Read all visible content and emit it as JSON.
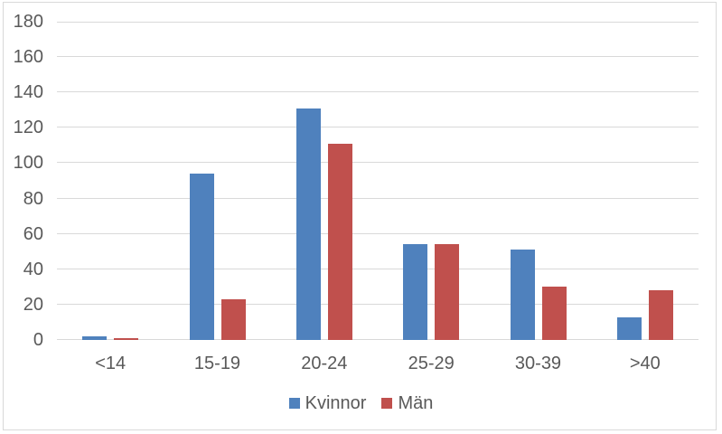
{
  "chart_data": {
    "type": "bar",
    "categories": [
      "<14",
      "15-19",
      "20-24",
      "25-29",
      "30-39",
      ">40"
    ],
    "series": [
      {
        "name": "Kvinnor",
        "color": "#4F81BD",
        "values": [
          2,
          94,
          131,
          54,
          51,
          13
        ]
      },
      {
        "name": "Män",
        "color": "#C0504D",
        "values": [
          1,
          23,
          111,
          54,
          30,
          28
        ]
      }
    ],
    "title": "",
    "xlabel": "",
    "ylabel": "",
    "ylim": [
      0,
      180
    ],
    "ytick_step": 20,
    "yticks": [
      0,
      20,
      40,
      60,
      80,
      100,
      120,
      140,
      160,
      180
    ],
    "grid": true,
    "legend_position": "bottom",
    "gridline_color": "#D9D9D9",
    "label_color": "#595959",
    "background_color": "#FFFFFF",
    "border_color": "#D9D9D9"
  }
}
